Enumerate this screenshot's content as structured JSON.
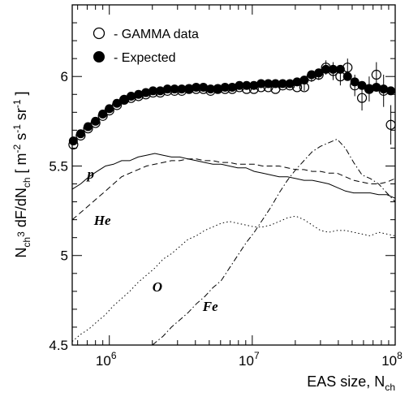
{
  "chart_data": {
    "type": "scatter",
    "xlabel": "EAS size, N_ch",
    "ylabel": "N_ch^3 dF/dN_ch [ m^-2 s^-1 sr^-1 ]",
    "x_scale": "log",
    "xlim": [
      550000,
      100000000
    ],
    "ylim": [
      4.5,
      6.4
    ],
    "x_ticks": [
      {
        "value": 1000000,
        "base": "10",
        "exp": "6"
      },
      {
        "value": 10000000,
        "base": "10",
        "exp": "7"
      },
      {
        "value": 100000000,
        "base": "10",
        "exp": "8"
      }
    ],
    "y_ticks": [
      {
        "value": 4.5,
        "label": "4.5"
      },
      {
        "value": 5,
        "label": "5"
      },
      {
        "value": 5.5,
        "label": "5.5"
      },
      {
        "value": 6,
        "label": "6"
      }
    ],
    "legend": {
      "placement": "top-left",
      "entries": [
        {
          "marker": "open-circle",
          "label": "- GAMMA data"
        },
        {
          "marker": "filled-circle",
          "label": "- Expected"
        }
      ]
    },
    "series": [
      {
        "name": "- GAMMA data",
        "marker": "open-circle",
        "x": [
          560000,
          630000,
          710000,
          800000,
          900000,
          1000000,
          1130000,
          1270000,
          1420000,
          1600000,
          1800000,
          2020000,
          2270000,
          2550000,
          2860000,
          3210000,
          3610000,
          4050000,
          4550000,
          5110000,
          5740000,
          6450000,
          7240000,
          8130000,
          9130000,
          10260000,
          11520000,
          12940000,
          14530000,
          16320000,
          18330000,
          20590000,
          23120000,
          25970000,
          29170000,
          32760000,
          36790000,
          41320000,
          46410000,
          52130000,
          58550000,
          65760000,
          73860000,
          82950000,
          93160000
        ],
        "y": [
          5.62,
          5.67,
          5.71,
          5.74,
          5.78,
          5.81,
          5.84,
          5.87,
          5.88,
          5.89,
          5.9,
          5.91,
          5.91,
          5.92,
          5.92,
          5.92,
          5.93,
          5.93,
          5.93,
          5.92,
          5.93,
          5.93,
          5.93,
          5.94,
          5.93,
          5.93,
          5.94,
          5.94,
          5.93,
          5.95,
          5.95,
          5.94,
          5.94,
          6.0,
          6.01,
          6.05,
          6.03,
          6.0,
          6.05,
          5.95,
          5.88,
          5.93,
          6.01,
          5.92,
          5.73
        ],
        "err": [
          0.01,
          0.01,
          0.01,
          0.01,
          0.01,
          0.01,
          0.01,
          0.01,
          0.01,
          0.01,
          0.01,
          0.01,
          0.01,
          0.01,
          0.01,
          0.01,
          0.01,
          0.01,
          0.01,
          0.01,
          0.01,
          0.01,
          0.01,
          0.01,
          0.01,
          0.01,
          0.01,
          0.01,
          0.01,
          0.01,
          0.01,
          0.01,
          0.02,
          0.03,
          0.03,
          0.04,
          0.05,
          0.05,
          0.05,
          0.06,
          0.07,
          0.07,
          0.07,
          0.09,
          0.11
        ]
      },
      {
        "name": "- Expected",
        "marker": "filled-circle",
        "x": [
          560000,
          630000,
          710000,
          800000,
          900000,
          1000000,
          1130000,
          1270000,
          1420000,
          1600000,
          1800000,
          2020000,
          2270000,
          2550000,
          2860000,
          3210000,
          3610000,
          4050000,
          4550000,
          5110000,
          5740000,
          6450000,
          7240000,
          8130000,
          9130000,
          10260000,
          11520000,
          12940000,
          14530000,
          16320000,
          18330000,
          20590000,
          23120000,
          25970000,
          29170000,
          32760000,
          36790000,
          41320000,
          46410000,
          52130000,
          58550000,
          65760000,
          73860000,
          82950000,
          93160000
        ],
        "y": [
          5.64,
          5.68,
          5.72,
          5.75,
          5.79,
          5.82,
          5.85,
          5.87,
          5.89,
          5.9,
          5.91,
          5.92,
          5.92,
          5.93,
          5.93,
          5.93,
          5.93,
          5.94,
          5.94,
          5.93,
          5.93,
          5.94,
          5.94,
          5.95,
          5.95,
          5.95,
          5.96,
          5.96,
          5.96,
          5.96,
          5.96,
          5.97,
          5.98,
          6.01,
          6.02,
          6.04,
          6.04,
          6.04,
          6.0,
          5.97,
          5.95,
          5.93,
          5.94,
          5.93,
          5.92
        ]
      },
      {
        "name": "p",
        "line": "solid",
        "x": [
          550000,
          630000,
          720000,
          820000,
          940000,
          1070000,
          1220000,
          1390000,
          1590000,
          1820000,
          2080000,
          2380000,
          2720000,
          3110000,
          3550000,
          4060000,
          4640000,
          5300000,
          6060000,
          6920000,
          7910000,
          9040000,
          10330000,
          11810000,
          13490000,
          15420000,
          17620000,
          20130000,
          23010000,
          26290000,
          30040000,
          34330000,
          39230000,
          44830000,
          51230000,
          58550000,
          66900000,
          76450000,
          87360000,
          100000000
        ],
        "y": [
          5.37,
          5.4,
          5.44,
          5.47,
          5.5,
          5.51,
          5.53,
          5.53,
          5.55,
          5.56,
          5.57,
          5.56,
          5.55,
          5.55,
          5.54,
          5.53,
          5.52,
          5.51,
          5.51,
          5.5,
          5.49,
          5.49,
          5.47,
          5.46,
          5.45,
          5.44,
          5.44,
          5.43,
          5.42,
          5.42,
          5.41,
          5.4,
          5.38,
          5.36,
          5.35,
          5.35,
          5.35,
          5.34,
          5.34,
          5.32
        ]
      },
      {
        "name": "He",
        "line": "dashed",
        "x": [
          550000,
          630000,
          720000,
          820000,
          940000,
          1070000,
          1220000,
          1390000,
          1590000,
          1820000,
          2080000,
          2380000,
          2720000,
          3110000,
          3550000,
          4060000,
          4640000,
          5300000,
          6060000,
          6920000,
          7910000,
          9040000,
          10330000,
          11810000,
          13490000,
          15420000,
          17620000,
          20130000,
          23010000,
          26290000,
          30040000,
          34330000,
          39230000,
          44830000,
          51230000,
          58550000,
          66900000,
          76450000,
          87360000,
          100000000
        ],
        "y": [
          5.2,
          5.24,
          5.28,
          5.32,
          5.36,
          5.4,
          5.44,
          5.46,
          5.48,
          5.5,
          5.51,
          5.52,
          5.53,
          5.53,
          5.54,
          5.54,
          5.53,
          5.53,
          5.52,
          5.52,
          5.51,
          5.51,
          5.51,
          5.5,
          5.5,
          5.5,
          5.49,
          5.48,
          5.48,
          5.47,
          5.47,
          5.46,
          5.46,
          5.44,
          5.42,
          5.41,
          5.4,
          5.4,
          5.41,
          5.43
        ]
      },
      {
        "name": "O",
        "line": "dotted",
        "x": [
          550000,
          630000,
          720000,
          820000,
          940000,
          1070000,
          1220000,
          1390000,
          1590000,
          1820000,
          2080000,
          2380000,
          2720000,
          3110000,
          3550000,
          4060000,
          4640000,
          5300000,
          6060000,
          6920000,
          7910000,
          9040000,
          10330000,
          11810000,
          13490000,
          15420000,
          17620000,
          20130000,
          23010000,
          26290000,
          30040000,
          34330000,
          39230000,
          44830000,
          51230000,
          58550000,
          66900000,
          76450000,
          87360000,
          100000000
        ],
        "y": [
          4.52,
          4.56,
          4.59,
          4.63,
          4.67,
          4.72,
          4.76,
          4.8,
          4.85,
          4.89,
          4.93,
          4.98,
          5.01,
          5.05,
          5.09,
          5.11,
          5.14,
          5.16,
          5.18,
          5.19,
          5.18,
          5.17,
          5.16,
          5.16,
          5.17,
          5.19,
          5.21,
          5.22,
          5.2,
          5.17,
          5.14,
          5.13,
          5.14,
          5.14,
          5.13,
          5.12,
          5.11,
          5.13,
          5.12,
          5.11
        ]
      },
      {
        "name": "Fe",
        "line": "dashdot",
        "x": [
          2000000,
          2380000,
          2720000,
          3110000,
          3550000,
          4060000,
          4640000,
          5300000,
          6060000,
          6920000,
          7910000,
          9040000,
          10330000,
          11810000,
          13490000,
          15420000,
          17620000,
          20130000,
          23010000,
          26290000,
          30040000,
          34330000,
          39230000,
          44830000,
          51230000,
          58550000,
          66900000,
          76450000,
          87360000,
          100000000
        ],
        "y": [
          4.5,
          4.55,
          4.6,
          4.64,
          4.68,
          4.73,
          4.77,
          4.82,
          4.86,
          4.93,
          5.0,
          5.07,
          5.13,
          5.2,
          5.27,
          5.35,
          5.42,
          5.48,
          5.53,
          5.58,
          5.61,
          5.63,
          5.65,
          5.6,
          5.52,
          5.45,
          5.43,
          5.4,
          5.35,
          5.3
        ]
      }
    ],
    "annotations": [
      {
        "text": "p",
        "x": 700000,
        "y": 5.43
      },
      {
        "text": "He",
        "x": 780000,
        "y": 5.17
      },
      {
        "text": "O",
        "x": 2000000,
        "y": 4.8
      },
      {
        "text": "Fe",
        "x": 4500000,
        "y": 4.69
      }
    ]
  }
}
